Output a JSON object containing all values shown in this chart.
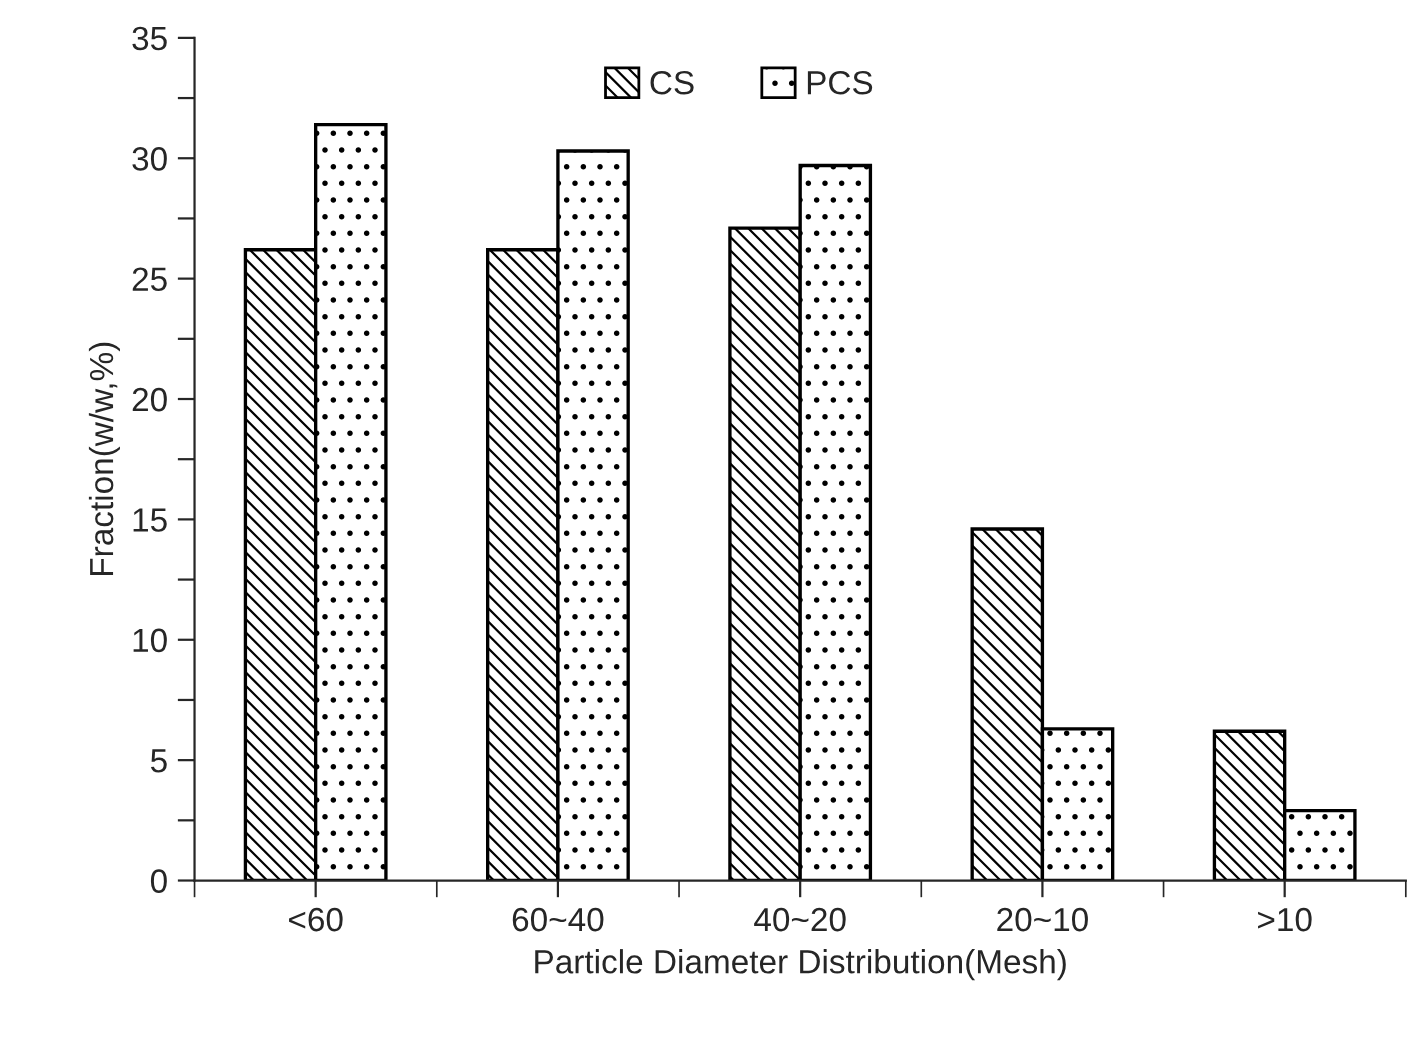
{
  "chart_data": {
    "type": "bar",
    "xlabel": "Particle Diameter Distribution(Mesh)",
    "ylabel": "Fraction(w/w,%)",
    "categories": [
      "<60",
      "60~40",
      "40~20",
      "20~10",
      ">10"
    ],
    "series": [
      {
        "name": "CS",
        "color": "#000000",
        "values": [
          26.2,
          26.2,
          27.1,
          14.6,
          6.2
        ]
      },
      {
        "name": "PCS",
        "color": "#000000",
        "values": [
          31.4,
          30.3,
          29.7,
          6.3,
          2.9
        ]
      }
    ],
    "ylim": [
      0,
      35
    ],
    "yticks": [
      0,
      {
        "value": 2.5,
        "label": null
      },
      5,
      {
        "value": 7.5,
        "label": null
      },
      10,
      {
        "value": 12.5,
        "label": null
      },
      15,
      {
        "value": 17.5,
        "label": null
      },
      20,
      {
        "value": 22.5,
        "label": null
      },
      25,
      {
        "value": 27.5,
        "label": null
      },
      30,
      {
        "value": 32.5,
        "label": null
      },
      35
    ],
    "grid": false,
    "legend": "top"
  }
}
